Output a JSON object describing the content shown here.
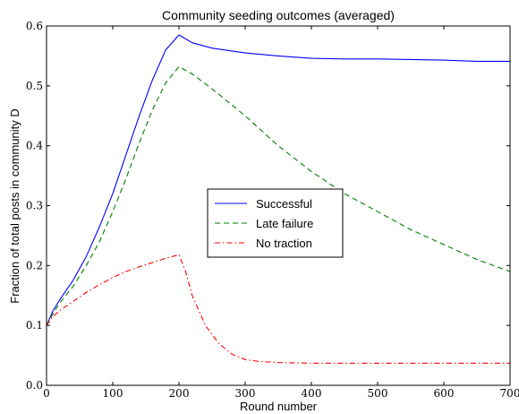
{
  "chart_data": {
    "type": "line",
    "title": "Community seeding outcomes (averaged)",
    "xlabel": "Round number",
    "ylabel": "Fraction of total posts in community D",
    "xlim": [
      0,
      700
    ],
    "ylim": [
      0.0,
      0.6
    ],
    "xticks": [
      0,
      100,
      200,
      300,
      400,
      500,
      600,
      700
    ],
    "yticks": [
      0.0,
      0.1,
      0.2,
      0.3,
      0.4,
      0.5,
      0.6
    ],
    "ytick_labels": [
      "0.0",
      "0.1",
      "0.2",
      "0.3",
      "0.4",
      "0.5",
      "0.6"
    ],
    "grid": false,
    "legend_position": "center",
    "series": [
      {
        "name": "Successful",
        "color": "#0000ff",
        "dash": "solid",
        "x": [
          0,
          10,
          20,
          40,
          60,
          80,
          100,
          120,
          140,
          160,
          180,
          200,
          220,
          250,
          300,
          350,
          400,
          450,
          500,
          550,
          600,
          650,
          700
        ],
        "y": [
          0.1,
          0.125,
          0.143,
          0.175,
          0.215,
          0.265,
          0.32,
          0.385,
          0.45,
          0.51,
          0.56,
          0.585,
          0.572,
          0.563,
          0.555,
          0.55,
          0.546,
          0.545,
          0.545,
          0.544,
          0.543,
          0.541,
          0.541
        ]
      },
      {
        "name": "Late failure",
        "color": "#007f00",
        "dash": "dashed",
        "x": [
          0,
          10,
          20,
          40,
          60,
          80,
          100,
          120,
          140,
          160,
          180,
          200,
          220,
          250,
          300,
          350,
          400,
          450,
          500,
          550,
          600,
          650,
          700
        ],
        "y": [
          0.1,
          0.12,
          0.138,
          0.165,
          0.2,
          0.24,
          0.29,
          0.345,
          0.405,
          0.46,
          0.505,
          0.532,
          0.52,
          0.495,
          0.45,
          0.4,
          0.357,
          0.32,
          0.29,
          0.26,
          0.235,
          0.21,
          0.19
        ]
      },
      {
        "name": "No traction",
        "color": "#ff0000",
        "dash": "dashdot",
        "x": [
          0,
          10,
          20,
          40,
          60,
          80,
          100,
          120,
          140,
          160,
          180,
          200,
          210,
          220,
          240,
          260,
          280,
          300,
          320,
          350,
          400,
          450,
          500,
          550,
          600,
          650,
          700
        ],
        "y": [
          0.1,
          0.115,
          0.125,
          0.14,
          0.155,
          0.168,
          0.18,
          0.19,
          0.198,
          0.205,
          0.212,
          0.218,
          0.19,
          0.15,
          0.1,
          0.07,
          0.052,
          0.043,
          0.04,
          0.038,
          0.037,
          0.037,
          0.037,
          0.037,
          0.037,
          0.037,
          0.037
        ]
      }
    ]
  }
}
